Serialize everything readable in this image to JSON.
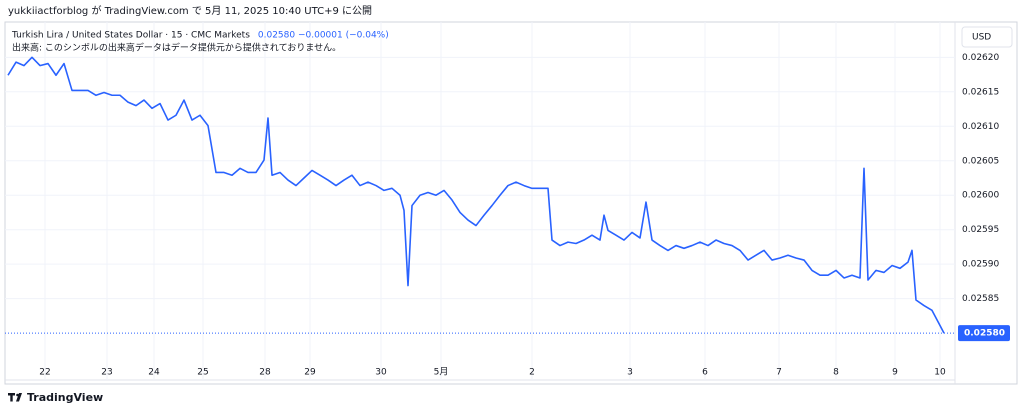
{
  "published": "yukkiiactforblog が TradingView.com で 5月 11, 2025 10:40 UTC+9 に公開",
  "brand": "TradingView",
  "chart_data": {
    "type": "line",
    "title": "Turkish Lira / United States Dollar · 15 · CMC Markets",
    "quote": "0.02580  −0.00001 (−0.04%)",
    "volume_note": "出来高: このシンボルの出来高データはデータ提供元から提供されておりません。",
    "currency": "USD",
    "color": "#2962ff",
    "grid": true,
    "x": [
      0,
      1,
      2,
      3,
      4,
      5,
      6,
      7,
      8,
      9,
      10,
      11,
      12,
      13,
      14,
      15,
      16,
      17,
      18,
      19,
      20,
      21,
      22,
      23,
      24,
      25,
      26,
      27,
      28,
      29,
      30,
      31,
      32,
      32.5,
      33,
      34,
      35,
      36,
      37,
      38,
      39,
      40,
      41,
      42,
      43,
      44,
      45,
      46,
      47,
      48,
      49,
      49.5,
      50,
      50.5,
      51.5,
      52.5,
      53.5,
      54.5,
      55.5,
      56.5,
      57.5,
      58.5,
      59.5,
      60.5,
      61.5,
      62.5,
      63.5,
      64.5,
      65.5,
      66.5,
      67.5,
      68,
      69,
      70,
      71,
      72,
      73,
      74,
      74.5,
      75,
      76,
      77,
      78,
      79,
      79.75,
      80.5,
      81.5,
      82.5,
      83.5,
      84.5,
      85.5,
      86.5,
      87.5,
      88.5,
      89.5,
      90.5,
      91.5,
      92.5,
      93.5,
      94.5,
      95.5,
      96.5,
      97.5,
      98.5,
      99.5,
      100.5,
      101.5,
      102.5,
      103.5,
      104.5,
      105.5,
      106.5,
      107,
      107.5,
      108.5,
      109.5,
      110.5,
      111.5,
      112.5,
      113,
      113.5,
      114.5,
      115.5,
      116.5,
      117
    ],
    "values": [
      0.026174,
      0.026193,
      0.026188,
      0.0262,
      0.026188,
      0.026191,
      0.026174,
      0.026191,
      0.026152,
      0.026152,
      0.026152,
      0.026145,
      0.026149,
      0.026145,
      0.026145,
      0.026135,
      0.02613,
      0.026138,
      0.026126,
      0.026133,
      0.026109,
      0.026116,
      0.026138,
      0.026109,
      0.026116,
      0.026101,
      0.026033,
      0.026033,
      0.026029,
      0.026039,
      0.026033,
      0.026033,
      0.026051,
      0.026112,
      0.026029,
      0.026033,
      0.026022,
      0.026014,
      0.026025,
      0.026036,
      0.026029,
      0.026022,
      0.026014,
      0.026022,
      0.026029,
      0.026014,
      0.026019,
      0.026014,
      0.026007,
      0.02601,
      0.026,
      0.025978,
      0.025869,
      0.025985,
      0.026,
      0.026004,
      0.026,
      0.026007,
      0.025993,
      0.025975,
      0.025964,
      0.025956,
      0.025971,
      0.025985,
      0.026,
      0.026014,
      0.026019,
      0.026014,
      0.02601,
      0.02601,
      0.02601,
      0.025935,
      0.025927,
      0.025932,
      0.02593,
      0.025935,
      0.025942,
      0.025935,
      0.025971,
      0.025949,
      0.025942,
      0.025935,
      0.025946,
      0.025938,
      0.02599,
      0.025935,
      0.025927,
      0.02592,
      0.025927,
      0.025923,
      0.025927,
      0.025932,
      0.025927,
      0.025935,
      0.02593,
      0.025927,
      0.02592,
      0.025906,
      0.025913,
      0.02592,
      0.025906,
      0.025909,
      0.025913,
      0.025909,
      0.025906,
      0.025891,
      0.025884,
      0.025884,
      0.025891,
      0.02588,
      0.025884,
      0.02588,
      0.026039,
      0.025877,
      0.025891,
      0.025888,
      0.025898,
      0.025894,
      0.025903,
      0.02592,
      0.025848,
      0.02584,
      0.025833,
      0.025811,
      0.0258
    ],
    "xlim": [
      0,
      118.375
    ],
    "xticks": [
      {
        "value": 4.625,
        "label": "22"
      },
      {
        "value": 12.375,
        "label": "23"
      },
      {
        "value": 18.25,
        "label": "24"
      },
      {
        "value": 24.375,
        "label": "25"
      },
      {
        "value": 32.125,
        "label": "28"
      },
      {
        "value": 37.75,
        "label": "29"
      },
      {
        "value": 46.625,
        "label": "30"
      },
      {
        "value": 54.125,
        "label": "5月"
      },
      {
        "value": 65.5,
        "label": "2"
      },
      {
        "value": 77.75,
        "label": "3"
      },
      {
        "value": 87.125,
        "label": "6"
      },
      {
        "value": 96.375,
        "label": "7"
      },
      {
        "value": 103.5,
        "label": "8"
      },
      {
        "value": 110.875,
        "label": "9"
      },
      {
        "value": 116.5,
        "label": "10"
      }
    ],
    "ylim": [
      0.025732,
      0.026244
    ],
    "yticks": [
      {
        "value": 0.0262,
        "label": "0.02620"
      },
      0.02615,
      {
        "value": 0.0261,
        "label": "0.02610"
      },
      0.02605,
      {
        "value": 0.026,
        "label": "0.02600"
      },
      0.02595,
      {
        "value": 0.0259,
        "label": "0.02590"
      },
      0.02585
    ],
    "last_price": {
      "value": 0.0258,
      "label": "0.02580"
    }
  }
}
